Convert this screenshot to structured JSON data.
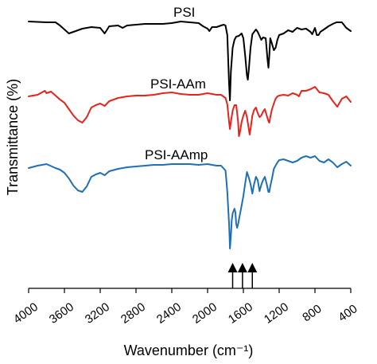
{
  "chart_data": {
    "type": "line",
    "xlabel": "Wavenumber (cm⁻¹)",
    "ylabel": "Transmittance (%)",
    "xlim": [
      4000,
      400
    ],
    "x_reversed": true,
    "x_ticks": [
      4000,
      3600,
      3200,
      2800,
      2400,
      2000,
      1600,
      1200,
      800,
      400
    ],
    "grid": false,
    "legend": "inline labels above each curve",
    "marker_arrows_at": [
      1720,
      1610,
      1500
    ],
    "series": [
      {
        "name": "PSI",
        "color": "#000000",
        "points": [
          [
            4000,
            27
          ],
          [
            3800,
            28
          ],
          [
            3700,
            28
          ],
          [
            3650,
            32
          ],
          [
            3600,
            37
          ],
          [
            3550,
            42
          ],
          [
            3500,
            40
          ],
          [
            3450,
            38
          ],
          [
            3400,
            36
          ],
          [
            3350,
            35
          ],
          [
            3300,
            34
          ],
          [
            3200,
            35
          ],
          [
            3150,
            42
          ],
          [
            3100,
            33
          ],
          [
            3000,
            32
          ],
          [
            2950,
            35
          ],
          [
            2900,
            32
          ],
          [
            2800,
            31
          ],
          [
            2700,
            30
          ],
          [
            2600,
            30
          ],
          [
            2500,
            30
          ],
          [
            2400,
            29
          ],
          [
            2300,
            27
          ],
          [
            2200,
            28
          ],
          [
            2100,
            29
          ],
          [
            2050,
            33
          ],
          [
            2000,
            36
          ],
          [
            1980,
            39
          ],
          [
            1950,
            34
          ],
          [
            1900,
            34
          ],
          [
            1850,
            32
          ],
          [
            1820,
            31
          ],
          [
            1800,
            32
          ],
          [
            1780,
            44
          ],
          [
            1760,
            105
          ],
          [
            1750,
            126
          ],
          [
            1740,
            90
          ],
          [
            1720,
            60
          ],
          [
            1700,
            50
          ],
          [
            1680,
            46
          ],
          [
            1650,
            45
          ],
          [
            1620,
            42
          ],
          [
            1600,
            48
          ],
          [
            1580,
            70
          ],
          [
            1560,
            95
          ],
          [
            1550,
            100
          ],
          [
            1540,
            88
          ],
          [
            1520,
            60
          ],
          [
            1500,
            43
          ],
          [
            1460,
            37
          ],
          [
            1440,
            40
          ],
          [
            1420,
            45
          ],
          [
            1400,
            50
          ],
          [
            1380,
            47
          ],
          [
            1350,
            48
          ],
          [
            1330,
            75
          ],
          [
            1320,
            85
          ],
          [
            1310,
            70
          ],
          [
            1300,
            48
          ],
          [
            1280,
            55
          ],
          [
            1260,
            63
          ],
          [
            1240,
            60
          ],
          [
            1220,
            50
          ],
          [
            1200,
            44
          ],
          [
            1150,
            42
          ],
          [
            1100,
            38
          ],
          [
            1050,
            40
          ],
          [
            1000,
            35
          ],
          [
            950,
            37
          ],
          [
            900,
            36
          ],
          [
            850,
            40
          ],
          [
            830,
            43
          ],
          [
            800,
            35
          ],
          [
            780,
            44
          ],
          [
            760,
            44
          ],
          [
            740,
            40
          ],
          [
            700,
            37
          ],
          [
            650,
            33
          ],
          [
            600,
            30
          ],
          [
            560,
            28
          ],
          [
            500,
            28
          ],
          [
            450,
            35
          ],
          [
            400,
            39
          ]
        ]
      },
      {
        "name": "PSI-AAm",
        "color": "#e8231c",
        "points": [
          [
            4000,
            24
          ],
          [
            3900,
            22
          ],
          [
            3820,
            17
          ],
          [
            3800,
            20
          ],
          [
            3750,
            18
          ],
          [
            3700,
            23
          ],
          [
            3650,
            28
          ],
          [
            3600,
            32
          ],
          [
            3550,
            40
          ],
          [
            3500,
            48
          ],
          [
            3450,
            54
          ],
          [
            3400,
            57
          ],
          [
            3350,
            50
          ],
          [
            3300,
            38
          ],
          [
            3250,
            35
          ],
          [
            3200,
            33
          ],
          [
            3150,
            36
          ],
          [
            3100,
            30
          ],
          [
            3000,
            26
          ],
          [
            2900,
            24
          ],
          [
            2800,
            23
          ],
          [
            2700,
            23
          ],
          [
            2600,
            22
          ],
          [
            2500,
            20
          ],
          [
            2400,
            19
          ],
          [
            2300,
            21
          ],
          [
            2200,
            22
          ],
          [
            2100,
            22
          ],
          [
            2000,
            20
          ],
          [
            1950,
            21
          ],
          [
            1900,
            22
          ],
          [
            1850,
            22
          ],
          [
            1800,
            26
          ],
          [
            1780,
            34
          ],
          [
            1760,
            56
          ],
          [
            1750,
            65
          ],
          [
            1740,
            56
          ],
          [
            1720,
            42
          ],
          [
            1700,
            35
          ],
          [
            1680,
            35
          ],
          [
            1660,
            55
          ],
          [
            1650,
            74
          ],
          [
            1640,
            70
          ],
          [
            1620,
            56
          ],
          [
            1600,
            48
          ],
          [
            1580,
            42
          ],
          [
            1560,
            50
          ],
          [
            1540,
            65
          ],
          [
            1530,
            72
          ],
          [
            1520,
            65
          ],
          [
            1500,
            48
          ],
          [
            1480,
            41
          ],
          [
            1460,
            38
          ],
          [
            1440,
            45
          ],
          [
            1420,
            50
          ],
          [
            1400,
            48
          ],
          [
            1380,
            43
          ],
          [
            1360,
            40
          ],
          [
            1340,
            48
          ],
          [
            1320,
            55
          ],
          [
            1310,
            57
          ],
          [
            1300,
            50
          ],
          [
            1280,
            40
          ],
          [
            1260,
            33
          ],
          [
            1240,
            27
          ],
          [
            1220,
            24
          ],
          [
            1200,
            23
          ],
          [
            1150,
            22
          ],
          [
            1100,
            23
          ],
          [
            1050,
            20
          ],
          [
            1000,
            22
          ],
          [
            980,
            24
          ],
          [
            950,
            17
          ],
          [
            900,
            17
          ],
          [
            850,
            15
          ],
          [
            800,
            12
          ],
          [
            750,
            19
          ],
          [
            700,
            20
          ],
          [
            650,
            22
          ],
          [
            600,
            30
          ],
          [
            550,
            37
          ],
          [
            500,
            27
          ],
          [
            450,
            24
          ],
          [
            400,
            31
          ]
        ]
      },
      {
        "name": "PSI-AAmp",
        "color": "#1f6fb4",
        "points": [
          [
            4000,
            25
          ],
          [
            3900,
            22
          ],
          [
            3800,
            20
          ],
          [
            3700,
            25
          ],
          [
            3650,
            27
          ],
          [
            3600,
            31
          ],
          [
            3550,
            38
          ],
          [
            3500,
            47
          ],
          [
            3450,
            53
          ],
          [
            3400,
            55
          ],
          [
            3350,
            48
          ],
          [
            3300,
            36
          ],
          [
            3250,
            33
          ],
          [
            3200,
            31
          ],
          [
            3150,
            34
          ],
          [
            3100,
            29
          ],
          [
            3000,
            26
          ],
          [
            2900,
            24
          ],
          [
            2800,
            23
          ],
          [
            2700,
            22
          ],
          [
            2600,
            21
          ],
          [
            2500,
            21
          ],
          [
            2400,
            20
          ],
          [
            2300,
            20
          ],
          [
            2200,
            20
          ],
          [
            2100,
            21
          ],
          [
            2000,
            20
          ],
          [
            1950,
            21
          ],
          [
            1900,
            22
          ],
          [
            1850,
            22
          ],
          [
            1800,
            28
          ],
          [
            1790,
            40
          ],
          [
            1780,
            55
          ],
          [
            1770,
            75
          ],
          [
            1760,
            95
          ],
          [
            1755,
            110
          ],
          [
            1750,
            126
          ],
          [
            1740,
            110
          ],
          [
            1730,
            90
          ],
          [
            1720,
            82
          ],
          [
            1700,
            76
          ],
          [
            1690,
            80
          ],
          [
            1680,
            95
          ],
          [
            1670,
            100
          ],
          [
            1660,
            96
          ],
          [
            1640,
            84
          ],
          [
            1620,
            72
          ],
          [
            1600,
            60
          ],
          [
            1580,
            44
          ],
          [
            1560,
            30
          ],
          [
            1540,
            37
          ],
          [
            1520,
            45
          ],
          [
            1500,
            57
          ],
          [
            1480,
            45
          ],
          [
            1460,
            36
          ],
          [
            1440,
            40
          ],
          [
            1420,
            54
          ],
          [
            1400,
            46
          ],
          [
            1380,
            40
          ],
          [
            1360,
            36
          ],
          [
            1340,
            45
          ],
          [
            1320,
            55
          ],
          [
            1310,
            55
          ],
          [
            1300,
            48
          ],
          [
            1280,
            38
          ],
          [
            1260,
            26
          ],
          [
            1240,
            22
          ],
          [
            1220,
            18
          ],
          [
            1200,
            15
          ],
          [
            1150,
            14
          ],
          [
            1100,
            16
          ],
          [
            1050,
            18
          ],
          [
            1000,
            16
          ],
          [
            950,
            12
          ],
          [
            900,
            10
          ],
          [
            850,
            12
          ],
          [
            800,
            10
          ],
          [
            750,
            16
          ],
          [
            700,
            18
          ],
          [
            650,
            14
          ],
          [
            600,
            18
          ],
          [
            550,
            24
          ],
          [
            500,
            20
          ],
          [
            450,
            17
          ],
          [
            400,
            22
          ]
        ]
      }
    ]
  }
}
